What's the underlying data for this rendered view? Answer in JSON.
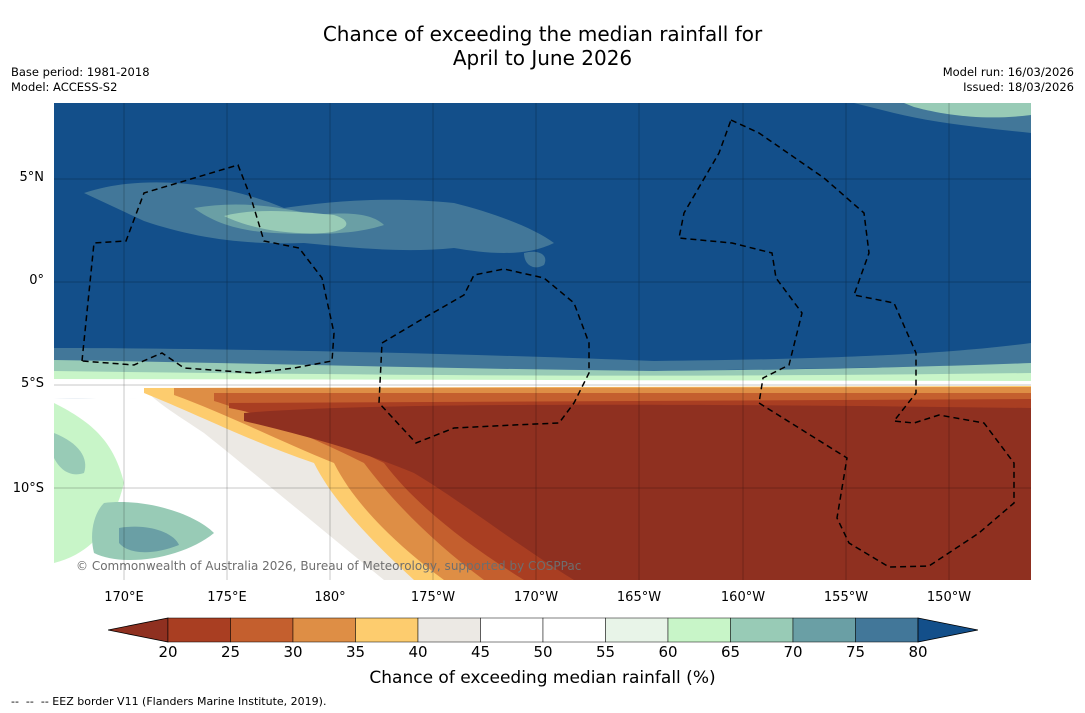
{
  "title": {
    "line1": "Chance of exceeding the median rainfall for",
    "line2": "April to June 2026"
  },
  "meta": {
    "base_period": "Base period: 1981-2018",
    "model": "Model: ACCESS-S2",
    "model_run": "Model run: 16/03/2026",
    "issued": "Issued: 18/03/2026"
  },
  "map": {
    "latitude_labels": [
      "5°N",
      "0°",
      "5°S",
      "10°S"
    ],
    "longitude_labels": [
      "170°E",
      "175°E",
      "180°",
      "175°W",
      "170°W",
      "165°W",
      "160°W",
      "155°W",
      "150°W"
    ],
    "credit": "© Commonwealth of Australia 2026, Bureau of Meteorology, supported by COSPPac"
  },
  "colorbar": {
    "ticks": [
      "20",
      "25",
      "30",
      "35",
      "40",
      "45",
      "50",
      "55",
      "60",
      "65",
      "70",
      "75",
      "80"
    ],
    "colors": [
      "#a93e22",
      "#c45f2e",
      "#de8e45",
      "#fdcc6e",
      "#ece9e4",
      "#ffffff",
      "#ffffff",
      "#e8f4e8",
      "#c8f5c8",
      "#98cbb6",
      "#6a9fa5",
      "#427799"
    ],
    "low_color": "#8f3020",
    "high_color": "#134f8a",
    "label": "Chance of exceeding median rainfall (%)"
  },
  "legend": {
    "eez": "--  --  -- EEZ border V11 (Flanders Marine Institute, 2019)."
  }
}
